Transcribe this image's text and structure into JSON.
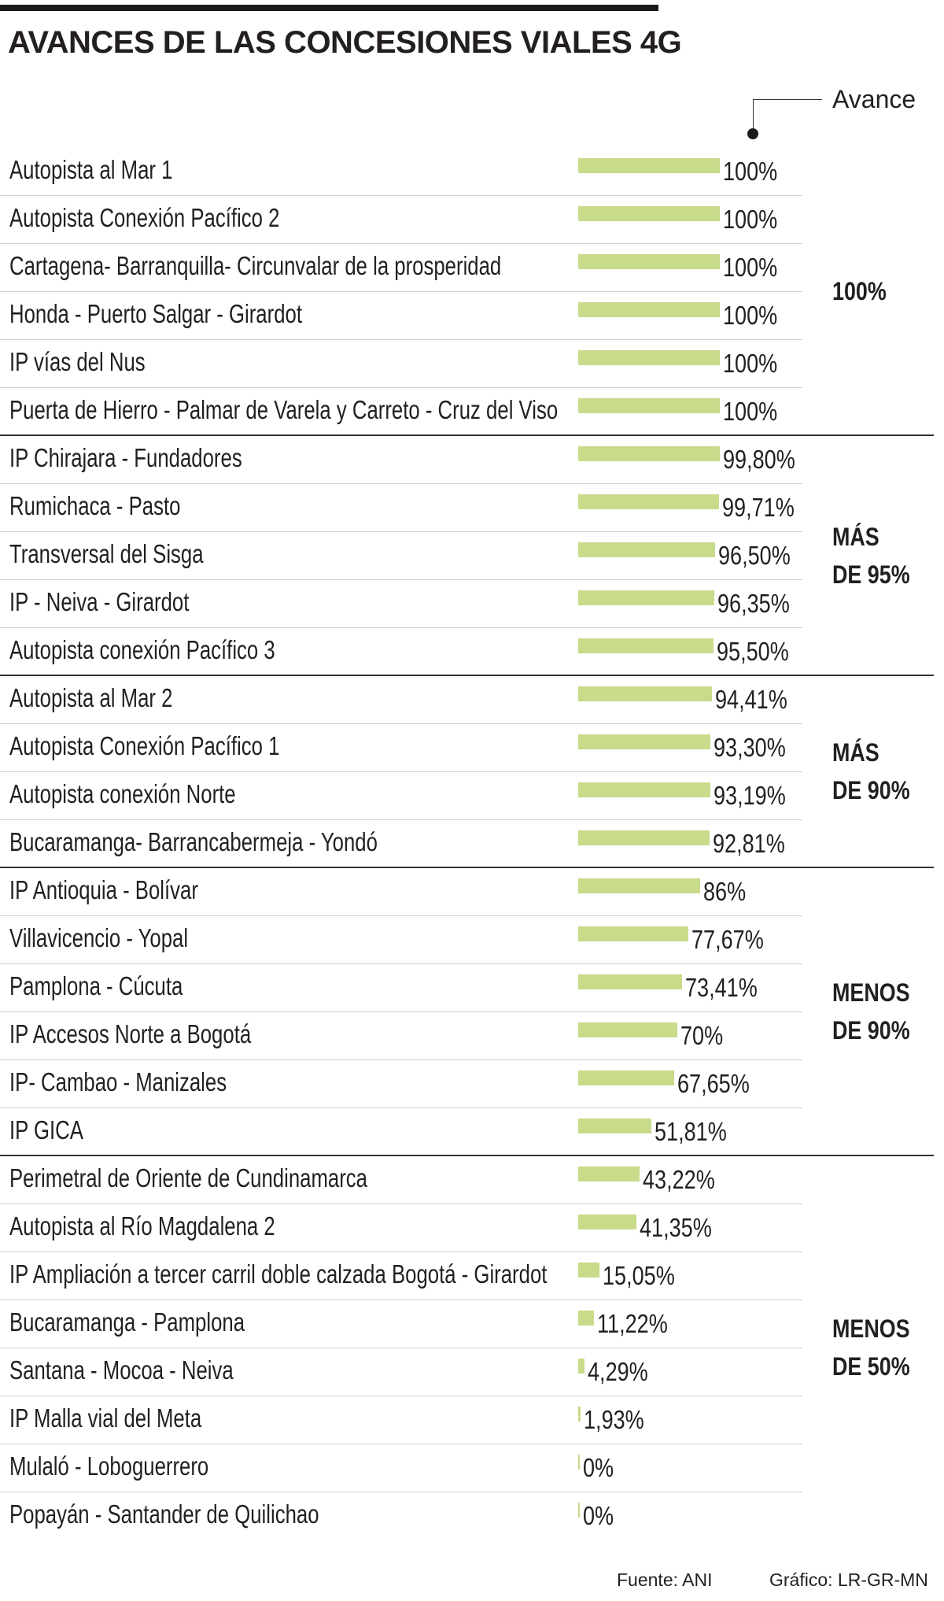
{
  "title": "AVANCES DE LAS CONCESIONES VIALES 4G",
  "legend_label": "Avance",
  "footer": {
    "source": "Fuente: ANI",
    "credit": "Gráfico: LR-GR-MN"
  },
  "colors": {
    "bar": "#c7db8a",
    "text": "#231f20",
    "rule": "#1a1a1a"
  },
  "groups": [
    {
      "lines": [
        "100%"
      ]
    },
    {
      "lines": [
        "MÁS",
        "DE 95%"
      ]
    },
    {
      "lines": [
        "MÁS",
        "DE 90%"
      ]
    },
    {
      "lines": [
        "MENOS",
        "DE 90%"
      ]
    },
    {
      "lines": [
        "MENOS",
        "DE 50%"
      ]
    }
  ],
  "chart_data": {
    "type": "bar",
    "orientation": "horizontal",
    "title": "AVANCES DE LAS CONCESIONES VIALES 4G",
    "xlim": [
      0,
      100
    ],
    "series": [
      {
        "name": "Avance"
      }
    ],
    "rows": [
      {
        "name": "Autopista al Mar 1",
        "value": 100,
        "label": "100%",
        "group": 0
      },
      {
        "name": "Autopista Conexión Pacífico 2",
        "value": 100,
        "label": "100%",
        "group": 0
      },
      {
        "name": "Cartagena- Barranquilla- Circunvalar de la prosperidad",
        "value": 100,
        "label": "100%",
        "group": 0
      },
      {
        "name": "Honda - Puerto Salgar - Girardot",
        "value": 100,
        "label": "100%",
        "group": 0
      },
      {
        "name": "IP vías del Nus",
        "value": 100,
        "label": "100%",
        "group": 0
      },
      {
        "name": "Puerta de Hierro - Palmar de Varela y Carreto - Cruz del Viso",
        "value": 100,
        "label": "100%",
        "group": 0
      },
      {
        "name": "IP Chirajara - Fundadores",
        "value": 99.8,
        "label": "99,80%",
        "group": 1
      },
      {
        "name": "Rumichaca - Pasto",
        "value": 99.71,
        "label": "99,71%",
        "group": 1
      },
      {
        "name": "Transversal del Sisga",
        "value": 96.5,
        "label": "96,50%",
        "group": 1
      },
      {
        "name": "IP - Neiva - Girardot",
        "value": 96.35,
        "label": "96,35%",
        "group": 1
      },
      {
        "name": "Autopista conexión Pacífico 3",
        "value": 95.5,
        "label": "95,50%",
        "group": 1
      },
      {
        "name": "Autopista al Mar 2",
        "value": 94.41,
        "label": "94,41%",
        "group": 2
      },
      {
        "name": "Autopista Conexión Pacífico 1",
        "value": 93.3,
        "label": "93,30%",
        "group": 2
      },
      {
        "name": "Autopista conexión Norte",
        "value": 93.19,
        "label": "93,19%",
        "group": 2
      },
      {
        "name": "Bucaramanga- Barrancabermeja - Yondó",
        "value": 92.81,
        "label": "92,81%",
        "group": 2
      },
      {
        "name": "IP Antioquia - Bolívar",
        "value": 86,
        "label": "86%",
        "group": 3
      },
      {
        "name": "Villavicencio - Yopal",
        "value": 77.67,
        "label": "77,67%",
        "group": 3
      },
      {
        "name": "Pamplona - Cúcuta",
        "value": 73.41,
        "label": "73,41%",
        "group": 3
      },
      {
        "name": "IP Accesos Norte a Bogotá",
        "value": 70,
        "label": "70%",
        "group": 3
      },
      {
        "name": "IP- Cambao - Manizales",
        "value": 67.65,
        "label": "67,65%",
        "group": 3
      },
      {
        "name": "IP GICA",
        "value": 51.81,
        "label": "51,81%",
        "group": 3
      },
      {
        "name": "Perimetral de Oriente de Cundinamarca",
        "value": 43.22,
        "label": "43,22%",
        "group": 4
      },
      {
        "name": "Autopista al Río Magdalena 2",
        "value": 41.35,
        "label": "41,35%",
        "group": 4
      },
      {
        "name": "IP Ampliación a tercer carril doble calzada Bogotá - Girardot",
        "value": 15.05,
        "label": "15,05%",
        "group": 4
      },
      {
        "name": "Bucaramanga - Pamplona",
        "value": 11.22,
        "label": "11,22%",
        "group": 4
      },
      {
        "name": "Santana - Mocoa - Neiva",
        "value": 4.29,
        "label": "4,29%",
        "group": 4
      },
      {
        "name": "IP Malla vial del Meta",
        "value": 1.93,
        "label": "1,93%",
        "group": 4
      },
      {
        "name": "Mulaló - Loboguerrero",
        "value": 0,
        "label": "0%",
        "group": 4
      },
      {
        "name": "Popayán - Santander de Quilichao",
        "value": 0,
        "label": "0%",
        "group": 4
      }
    ]
  }
}
